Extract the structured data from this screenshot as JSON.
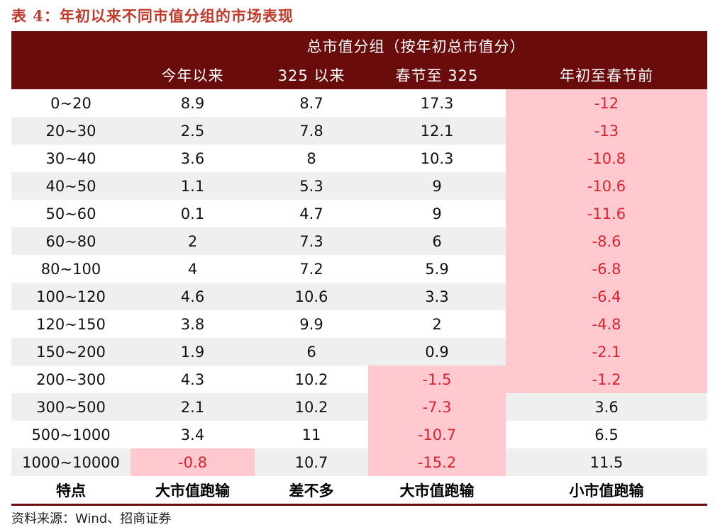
{
  "title": "表 4：年初以来不同市值分组的市场表现",
  "header": {
    "group_label": "总市值分组（按年初总市值分）",
    "columns": [
      "",
      "今年以来",
      "325 以来",
      "春节至 325",
      "年初至春节前"
    ]
  },
  "rows": [
    {
      "group": "0~20",
      "ytd": "8.9",
      "since325": "8.7",
      "spring_to_325": "17.3",
      "ytd_to_spring": "-12"
    },
    {
      "group": "20~30",
      "ytd": "2.5",
      "since325": "7.8",
      "spring_to_325": "12.1",
      "ytd_to_spring": "-13"
    },
    {
      "group": "30~40",
      "ytd": "3.6",
      "since325": "8",
      "spring_to_325": "10.3",
      "ytd_to_spring": "-10.8"
    },
    {
      "group": "40~50",
      "ytd": "1.1",
      "since325": "5.3",
      "spring_to_325": "9",
      "ytd_to_spring": "-10.6"
    },
    {
      "group": "50~60",
      "ytd": "0.1",
      "since325": "4.7",
      "spring_to_325": "9",
      "ytd_to_spring": "-11.6"
    },
    {
      "group": "60~80",
      "ytd": "2",
      "since325": "7.3",
      "spring_to_325": "6",
      "ytd_to_spring": "-8.6"
    },
    {
      "group": "80~100",
      "ytd": "4",
      "since325": "7.2",
      "spring_to_325": "5.9",
      "ytd_to_spring": "-6.8"
    },
    {
      "group": "100~120",
      "ytd": "4.6",
      "since325": "10.6",
      "spring_to_325": "3.3",
      "ytd_to_spring": "-6.4"
    },
    {
      "group": "120~150",
      "ytd": "3.8",
      "since325": "9.9",
      "spring_to_325": "2",
      "ytd_to_spring": "-4.8"
    },
    {
      "group": "150~200",
      "ytd": "1.9",
      "since325": "6",
      "spring_to_325": "0.9",
      "ytd_to_spring": "-2.1"
    },
    {
      "group": "200~300",
      "ytd": "4.3",
      "since325": "10.2",
      "spring_to_325": "-1.5",
      "ytd_to_spring": "-1.2"
    },
    {
      "group": "300~500",
      "ytd": "2.1",
      "since325": "10.2",
      "spring_to_325": "-7.3",
      "ytd_to_spring": "3.6"
    },
    {
      "group": "500~1000",
      "ytd": "3.4",
      "since325": "11",
      "spring_to_325": "-10.7",
      "ytd_to_spring": "6.5"
    },
    {
      "group": "1000~10000",
      "ytd": "-0.8",
      "since325": "10.7",
      "spring_to_325": "-15.2",
      "ytd_to_spring": "11.5"
    }
  ],
  "footer": [
    "特点",
    "大市值跑输",
    "差不多",
    "大市值跑输",
    "小市值跑输"
  ],
  "source": "资料来源：Wind、招商证券",
  "colors": {
    "header_bg": "#6b0c0c",
    "negative_bg": "#ffc9cf",
    "negative_text": "#d9232e",
    "stripe": "#efefef",
    "title": "#c0392b"
  }
}
